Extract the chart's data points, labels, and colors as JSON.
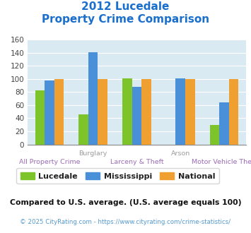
{
  "title_line1": "2012 Lucedale",
  "title_line2": "Property Crime Comparison",
  "top_labels": [
    "",
    "Burglary",
    "",
    "Arson",
    ""
  ],
  "bottom_labels": [
    "All Property Crime",
    "",
    "Larceny & Theft",
    "",
    "Motor Vehicle Theft"
  ],
  "lucedale": [
    82,
    46,
    101,
    0,
    30
  ],
  "mississippi": [
    98,
    141,
    88,
    101,
    64
  ],
  "national": [
    100,
    100,
    100,
    100,
    100
  ],
  "colors": {
    "lucedale": "#7dc42a",
    "mississippi": "#4a90d9",
    "national": "#f0a030"
  },
  "ylim": [
    0,
    160
  ],
  "yticks": [
    0,
    20,
    40,
    60,
    80,
    100,
    120,
    140,
    160
  ],
  "plot_bg": "#daeaf3",
  "title_color": "#1a6fcc",
  "top_label_color": "#9b9b9b",
  "bottom_label_color": "#9b6db5",
  "footer_note": "Compared to U.S. average. (U.S. average equals 100)",
  "copyright": "© 2025 CityRating.com - https://www.cityrating.com/crime-statistics/",
  "legend_labels": [
    "Lucedale",
    "Mississippi",
    "National"
  ],
  "bar_width": 0.22,
  "title_fontsize": 11,
  "label_fontsize": 6.8,
  "tick_fontsize": 7.5,
  "legend_fontsize": 8,
  "footer_fontsize": 7.8,
  "copyright_fontsize": 6.2
}
